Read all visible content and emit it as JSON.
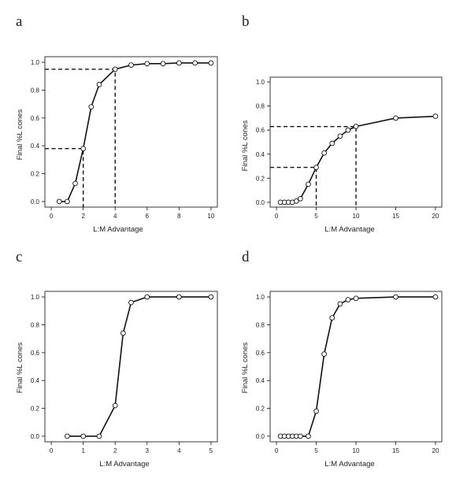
{
  "chart_data": [
    {
      "panel": "a",
      "type": "line",
      "xlabel": "L:M Advantage",
      "ylabel": "Final %L cones",
      "xlim": [
        0,
        10
      ],
      "ylim": [
        0,
        1
      ],
      "xticks": [
        0,
        2,
        4,
        6,
        8,
        10
      ],
      "yticks": [
        0.0,
        0.2,
        0.4,
        0.6,
        0.8,
        1.0
      ],
      "ytick_labels": [
        "0.0",
        "0.2",
        "0.4",
        "0.6",
        "0.8",
        "1.0"
      ],
      "grid": false,
      "x": [
        0.5,
        1,
        1.5,
        2,
        2.5,
        3,
        4,
        5,
        6,
        7,
        8,
        9,
        10
      ],
      "y": [
        0.0,
        0.0,
        0.13,
        0.38,
        0.68,
        0.84,
        0.95,
        0.98,
        0.99,
        0.99,
        0.995,
        0.995,
        0.995
      ],
      "reference_points": [
        {
          "x": 2,
          "y": 0.38
        },
        {
          "x": 4,
          "y": 0.95
        }
      ]
    },
    {
      "panel": "b",
      "type": "line",
      "xlabel": "L:M Advantage",
      "ylabel": "Final %L cones",
      "xlim": [
        0,
        20
      ],
      "ylim": [
        0,
        1
      ],
      "xticks": [
        0,
        5,
        10,
        15,
        20
      ],
      "yticks": [
        0.0,
        0.2,
        0.4,
        0.6,
        0.8,
        1.0
      ],
      "ytick_labels": [
        "0.0",
        "0.2",
        "0.4",
        "0.6",
        "0.8",
        "1.0"
      ],
      "grid": false,
      "x": [
        0.5,
        1,
        1.5,
        2,
        2.5,
        3,
        4,
        5,
        6,
        7,
        8,
        9,
        10,
        15,
        20
      ],
      "y": [
        0.0,
        0.0,
        0.0,
        0.0,
        0.01,
        0.03,
        0.15,
        0.29,
        0.41,
        0.49,
        0.55,
        0.6,
        0.63,
        0.7,
        0.715
      ],
      "reference_points": [
        {
          "x": 5,
          "y": 0.29
        },
        {
          "x": 10,
          "y": 0.63
        }
      ]
    },
    {
      "panel": "c",
      "type": "line",
      "xlabel": "L:M Advantage",
      "ylabel": "Final %L cones",
      "xlim": [
        0,
        5
      ],
      "ylim": [
        0,
        1
      ],
      "xticks": [
        0,
        1,
        2,
        3,
        4,
        5
      ],
      "yticks": [
        0.0,
        0.2,
        0.4,
        0.6,
        0.8,
        1.0
      ],
      "ytick_labels": [
        "0.0",
        "0.2",
        "0.4",
        "0.6",
        "0.8",
        "1.0"
      ],
      "grid": false,
      "x": [
        0.5,
        1,
        1.5,
        2,
        2.25,
        2.5,
        3,
        4,
        5
      ],
      "y": [
        0.0,
        0.0,
        0.0,
        0.22,
        0.74,
        0.96,
        1.0,
        1.0,
        1.0
      ],
      "reference_points": []
    },
    {
      "panel": "d",
      "type": "line",
      "xlabel": "L:M Advantage",
      "ylabel": "Final %L cones",
      "xlim": [
        0,
        20
      ],
      "ylim": [
        0,
        1
      ],
      "xticks": [
        0,
        5,
        10,
        15,
        20
      ],
      "yticks": [
        0.0,
        0.2,
        0.4,
        0.6,
        0.8,
        1.0
      ],
      "ytick_labels": [
        "0.0",
        "0.2",
        "0.4",
        "0.6",
        "0.8",
        "1.0"
      ],
      "grid": false,
      "x": [
        0.5,
        1,
        1.5,
        2,
        2.5,
        3,
        4,
        5,
        6,
        7,
        8,
        9,
        10,
        15,
        20
      ],
      "y": [
        0.0,
        0.0,
        0.0,
        0.0,
        0.0,
        0.0,
        0.0,
        0.18,
        0.59,
        0.85,
        0.95,
        0.98,
        0.99,
        1.0,
        1.0
      ],
      "reference_points": []
    }
  ]
}
